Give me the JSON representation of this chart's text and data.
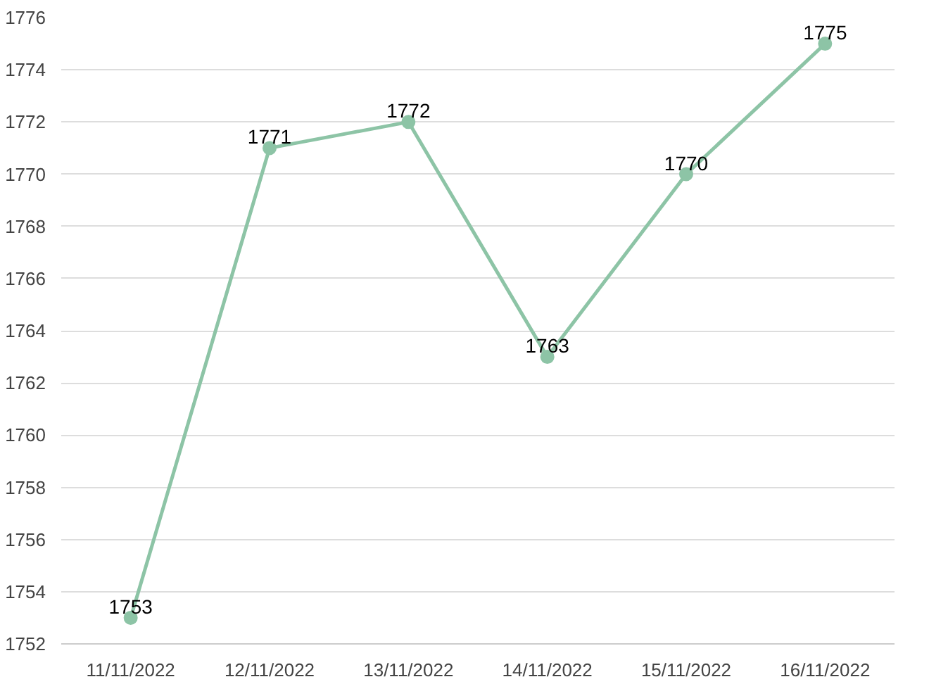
{
  "chart_data": {
    "type": "line",
    "categories": [
      "11/11/2022",
      "12/11/2022",
      "13/11/2022",
      "14/11/2022",
      "15/11/2022",
      "16/11/2022"
    ],
    "series": [
      {
        "color": "#8dc4a6",
        "values": [
          1753,
          1771,
          1772,
          1763,
          1770,
          1775
        ]
      }
    ],
    "ylim": [
      1752,
      1776
    ],
    "yticks": [
      1752,
      1754,
      1756,
      1758,
      1760,
      1762,
      1764,
      1766,
      1768,
      1770,
      1772,
      1774,
      1776
    ],
    "grid": "y",
    "marker": "circle",
    "line_style": "solid",
    "data_labels": true
  }
}
